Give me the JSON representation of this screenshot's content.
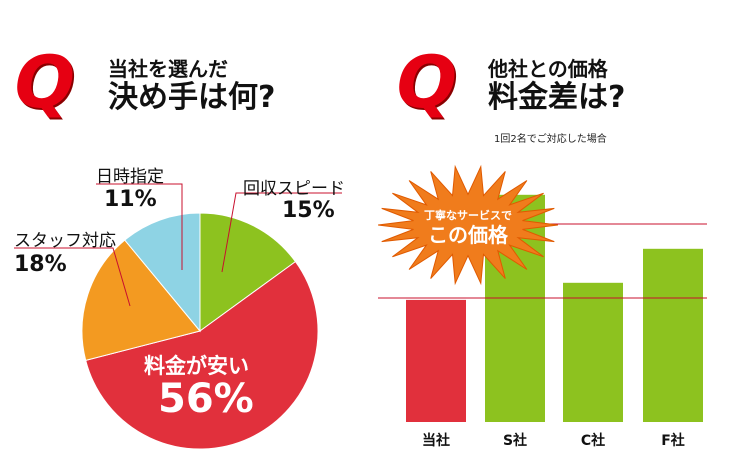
{
  "left": {
    "q_mark": "Q",
    "title_line1": "当社を選んだ",
    "title_line2": "決め手は何?"
  },
  "right": {
    "q_mark": "Q",
    "title_line1": "他社との価格",
    "title_line2": "料金差は?",
    "note": "1回2名でご対応した場合",
    "burst_line1": "丁寧なサービスで",
    "burst_line2": "この価格"
  },
  "chart_data": [
    {
      "type": "pie",
      "title": "当社を選んだ決め手は何?",
      "slices": [
        {
          "label": "回収スピード",
          "pct_label": "15%",
          "value": 15,
          "color": "#8dc21f"
        },
        {
          "label": "料金が安い",
          "pct_label": "56%",
          "value": 56,
          "color": "#e1303c"
        },
        {
          "label": "スタッフ対応",
          "pct_label": "18%",
          "value": 18,
          "color": "#f39a21"
        },
        {
          "label": "日時指定",
          "pct_label": "11%",
          "value": 11,
          "color": "#8ed3e4"
        }
      ]
    },
    {
      "type": "bar",
      "title": "他社との価格料金差は?",
      "categories": [
        "当社",
        "S社",
        "C社",
        "F社"
      ],
      "values": [
        0.43,
        0.8,
        0.49,
        0.61
      ],
      "colors": [
        "#e1303c",
        "#8dc21f",
        "#8dc21f",
        "#8dc21f"
      ]
    }
  ]
}
